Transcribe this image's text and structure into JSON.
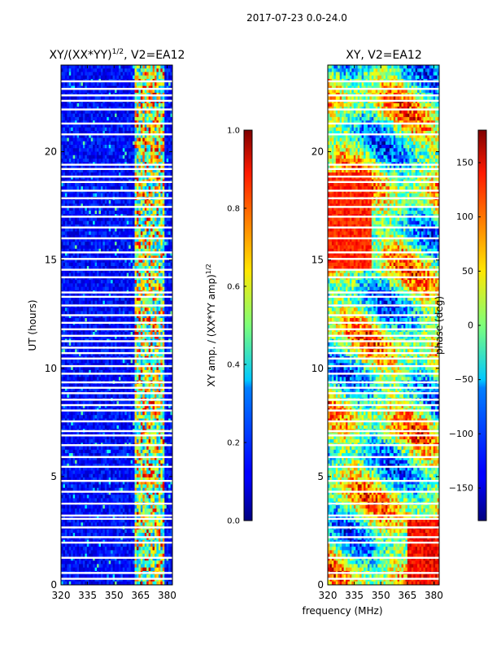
{
  "figure": {
    "suptitle": "2017-07-23 0.0-24.0",
    "shared_xlabel": "frequency (MHz)"
  },
  "chart_data": [
    {
      "type": "heatmap",
      "title": "XY/(XX*YY)¹ᐟ², V2=EA12",
      "title_main": "XY/(XX*YY)",
      "title_sup": "1/2",
      "title_tail": ", V2=EA12",
      "xlabel": "frequency (MHz)",
      "ylabel": "UT (hours)",
      "xlim": [
        320,
        383
      ],
      "ylim": [
        0,
        24
      ],
      "xticks": [
        320,
        335,
        350,
        365,
        380
      ],
      "yticks": [
        0,
        5,
        10,
        15,
        20
      ],
      "quantity": "XY amplitude normalized",
      "bright_band_MHz": [
        362,
        378
      ],
      "colorbar": {
        "label_main": "XY amp. / (XX*YY amp)",
        "label_sup": "1/2",
        "range": [
          0.0,
          1.0
        ],
        "ticks": [
          "0.0",
          "0.2",
          "0.4",
          "0.6",
          "0.8",
          "1.0"
        ],
        "tick_values": [
          0.0,
          0.2,
          0.4,
          0.6,
          0.8,
          1.0
        ],
        "colormap": "jet"
      }
    },
    {
      "type": "heatmap",
      "title": "XY, V2=EA12",
      "xlabel": "frequency (MHz)",
      "ylabel": "",
      "xlim": [
        320,
        383
      ],
      "ylim": [
        0,
        24
      ],
      "xticks": [
        320,
        335,
        350,
        365,
        380
      ],
      "yticks": [
        0,
        5,
        10,
        15,
        20
      ],
      "quantity": "XY phase",
      "colorbar": {
        "label": "phase (deg)",
        "range": [
          -180,
          180
        ],
        "ticks": [
          "150",
          "100",
          "50",
          "0",
          "−50",
          "−100",
          "−150"
        ],
        "tick_values": [
          150,
          100,
          50,
          0,
          -50,
          -100,
          -150
        ],
        "colormap": "jet"
      }
    }
  ],
  "gap_rows_hours": [
    0.28,
    0.55,
    1.25,
    1.95,
    2.2,
    2.65,
    3.05,
    3.2,
    3.75,
    4.3,
    4.8,
    5.45,
    5.9,
    6.45,
    6.9,
    7.1,
    7.55,
    8.05,
    8.3,
    8.55,
    8.85,
    9.1,
    9.35,
    9.75,
    10.1,
    10.45,
    10.7,
    10.95,
    11.25,
    11.5,
    11.8,
    12.1,
    12.45,
    12.9,
    13.3,
    13.5,
    14.2,
    14.55,
    15.05,
    15.35,
    16.0,
    16.5,
    17.0,
    17.45,
    17.85,
    18.2,
    18.6,
    18.85,
    19.2,
    19.4,
    20.8,
    21.3,
    21.95,
    22.35,
    22.6,
    22.9,
    23.25
  ]
}
